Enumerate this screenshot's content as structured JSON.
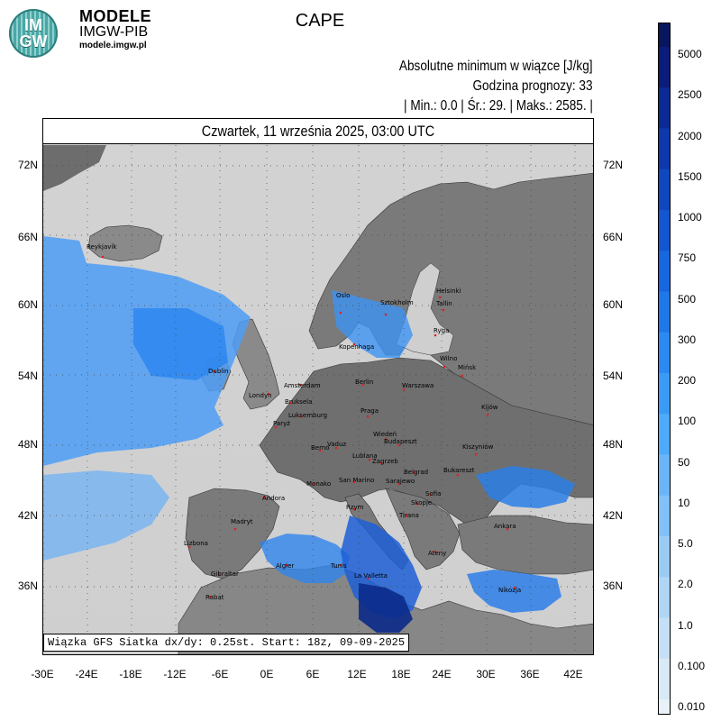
{
  "brand": {
    "logo_top": "IM",
    "logo_bottom": "GW",
    "title": "MODELE",
    "subtitle": "IMGW-PIB",
    "url": "modele.imgw.pl"
  },
  "map_title": "CAPE",
  "info": {
    "line1": "Absolutne minimum w wiązce [J/kg]",
    "line2": "Godzina prognozy: 33",
    "line3": "| Min.:     0.0 | Śr.:     29. | Maks.:   2585. |"
  },
  "date_label": "Czwartek, 11 września 2025, 03:00 UTC",
  "model_note": "Wiązka GFS Siatka dx/dy: 0.25st. Start: 18z, 09-09-2025",
  "latitudes": [
    "72N",
    "66N",
    "60N",
    "54N",
    "48N",
    "42N",
    "36N"
  ],
  "longitudes": [
    "-30E",
    "-24E",
    "-18E",
    "-12E",
    "-6E",
    "0E",
    "6E",
    "12E",
    "18E",
    "24E",
    "30E",
    "36E",
    "42E"
  ],
  "legend": {
    "labels": [
      "5000",
      "2500",
      "2000",
      "1500",
      "1000",
      "750",
      "500",
      "300",
      "200",
      "100",
      "50",
      "10",
      "5.0",
      "2.0",
      "1.0",
      "0.100",
      "0.010"
    ],
    "colors": [
      "#0b1c7a",
      "#0c2a96",
      "#0d39ad",
      "#0f47c0",
      "#1256d2",
      "#1767e0",
      "#1e78ea",
      "#2a8af2",
      "#3a9bf7",
      "#4dabfa",
      "#6ab5f8",
      "#82c1f7",
      "#9acbf5",
      "#b0d6f5",
      "#c5e0f6",
      "#d8e9f7",
      "#e8f1f8"
    ]
  },
  "cities": [
    {
      "name": "Reykjavík"
    },
    {
      "name": "Oslo"
    },
    {
      "name": "Sztokholm"
    },
    {
      "name": "Helsinki"
    },
    {
      "name": "Tallin"
    },
    {
      "name": "Ryga"
    },
    {
      "name": "Kopenhaga"
    },
    {
      "name": "Wilno"
    },
    {
      "name": "Mińsk"
    },
    {
      "name": "Dublin"
    },
    {
      "name": "Amsterdam"
    },
    {
      "name": "Londyn"
    },
    {
      "name": "Berlin"
    },
    {
      "name": "Warszawa"
    },
    {
      "name": "Bruksela"
    },
    {
      "name": "Luksemburg"
    },
    {
      "name": "Praga"
    },
    {
      "name": "Kijów"
    },
    {
      "name": "Paryż"
    },
    {
      "name": "Wiedeń"
    },
    {
      "name": "Budapeszt"
    },
    {
      "name": "Kiszyniów"
    },
    {
      "name": "Berno"
    },
    {
      "name": "Vaduz"
    },
    {
      "name": "Zagrzeb"
    },
    {
      "name": "Lublana"
    },
    {
      "name": "Belgrad"
    },
    {
      "name": "Bukareszt"
    },
    {
      "name": "Monako"
    },
    {
      "name": "San Marino"
    },
    {
      "name": "Sarajewo"
    },
    {
      "name": "Andora"
    },
    {
      "name": "Rzym"
    },
    {
      "name": "Skopje"
    },
    {
      "name": "Sofia"
    },
    {
      "name": "Tirana"
    },
    {
      "name": "Madryt"
    },
    {
      "name": "Ankara"
    },
    {
      "name": "Lizbona"
    },
    {
      "name": "Ateny"
    },
    {
      "name": "Algier"
    },
    {
      "name": "Tunis"
    },
    {
      "name": "La Valletta"
    },
    {
      "name": "Nikozja"
    },
    {
      "name": "Gibraltar"
    },
    {
      "name": "Rabat"
    }
  ]
}
